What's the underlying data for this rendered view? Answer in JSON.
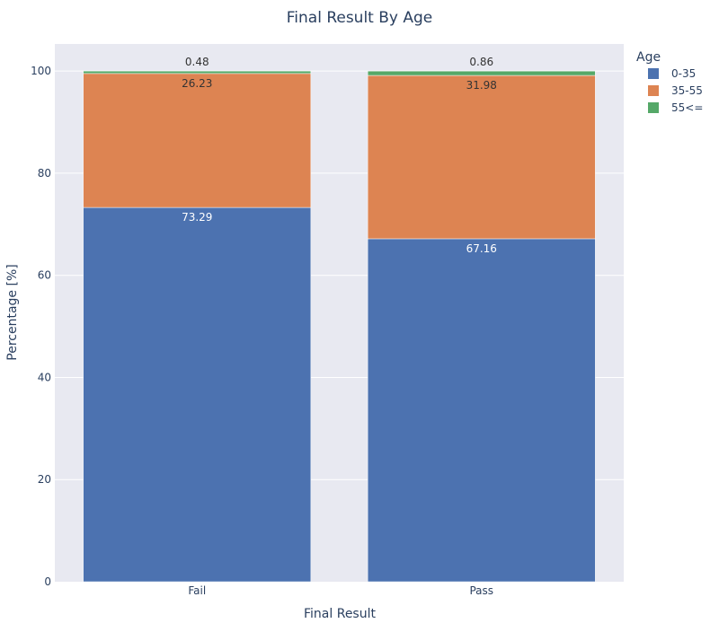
{
  "chart_data": {
    "type": "bar",
    "stacked": true,
    "title": "Final Result By Age",
    "xlabel": "Final Result",
    "ylabel": "Percentage [%]",
    "categories": [
      "Fail",
      "Pass"
    ],
    "ylim": [
      0,
      105.3
    ],
    "yticks": [
      0,
      20,
      40,
      60,
      80,
      100
    ],
    "grid": true,
    "legend": {
      "title": "Age",
      "placement": "top-right, outside plot"
    },
    "series": [
      {
        "name": "0-35",
        "values": [
          73.29,
          67.16
        ],
        "labels": [
          "73.29",
          "67.16"
        ],
        "color": "#4c72b0",
        "label_color": "#ffffff"
      },
      {
        "name": "35-55",
        "values": [
          26.23,
          31.98
        ],
        "labels": [
          "26.23",
          "31.98"
        ],
        "color": "#dd8452",
        "label_color": "#333333"
      },
      {
        "name": "55<=",
        "values": [
          0.48,
          0.86
        ],
        "labels": [
          "0.48",
          "0.86"
        ],
        "color": "#55a868",
        "label_color": "#333333"
      }
    ],
    "colors": {
      "plot_background": "#e8e9f1",
      "gridline": "#ffffff",
      "text": "#2a3f5f"
    }
  }
}
